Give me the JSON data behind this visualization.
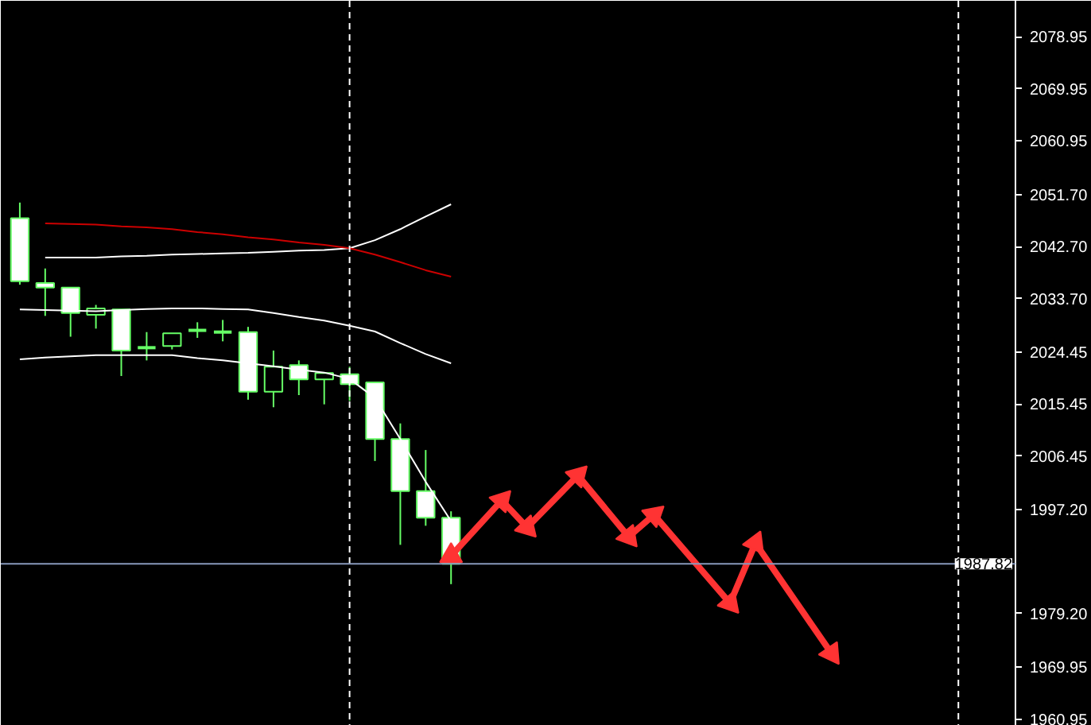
{
  "chart_data": {
    "type": "candlestick",
    "categories": [
      null,
      null,
      null,
      null,
      null,
      null,
      null,
      null,
      null,
      null,
      null,
      null,
      null,
      null,
      null,
      null,
      null,
      null,
      null,
      null,
      null,
      null,
      null,
      null,
      null,
      null,
      null,
      null,
      null,
      null,
      null,
      null,
      null,
      null,
      null,
      null,
      null,
      null,
      null,
      null
    ],
    "ylim": [
      1959.8,
      2085.2
    ],
    "yticks": [
      2078.95,
      2069.95,
      2060.95,
      {
        "value": 2051.7,
        "label": "2051.70"
      },
      {
        "value": 2042.7,
        "label": "2042.70"
      },
      {
        "value": 2033.7,
        "label": "2033.70"
      },
      2024.45,
      2015.45,
      2006.45,
      {
        "value": 1997.2,
        "label": "1997.20"
      },
      {
        "value": 1979.2,
        "label": "1979.20"
      },
      1969.95,
      1960.95
    ],
    "tick_labels": "y",
    "grid": false,
    "series": [
      {
        "color": "#66ff66",
        "ohlc": [
          [
            2047.6,
            2050.3,
            2036.1,
            2036.7
          ],
          [
            2036.4,
            2038.9,
            2030.7,
            2035.6
          ],
          [
            2035.6,
            2035.6,
            2027.1,
            2031.2
          ],
          [
            2030.9,
            2032.6,
            2028.5,
            2032.0
          ],
          [
            2031.8,
            2031.8,
            2020.3,
            2024.7
          ],
          [
            2025.2,
            2027.9,
            2023.0,
            2025.2
          ],
          [
            2025.5,
            2027.7,
            2024.9,
            2027.7
          ],
          [
            2028.2,
            2029.6,
            2026.9,
            2028.2
          ],
          [
            2027.9,
            2030.0,
            2026.3,
            2027.9
          ],
          [
            2027.9,
            2028.8,
            2016.2,
            2017.6
          ],
          [
            2017.6,
            2024.7,
            2014.9,
            2021.9
          ],
          [
            2022.2,
            2023.0,
            2017.0,
            2019.7
          ],
          [
            2019.7,
            2020.8,
            2015.4,
            2020.8
          ],
          [
            2020.6,
            2021.9,
            2016.0,
            2018.9
          ],
          [
            2019.2,
            2019.2,
            2005.6,
            2009.4
          ],
          [
            2009.4,
            2012.1,
            1991.1,
            2000.4
          ],
          [
            2000.4,
            2007.5,
            1994.4,
            1995.8
          ],
          [
            1995.8,
            1996.9,
            1984.3,
            1987.82
          ],
          null,
          null,
          null,
          null,
          null,
          null,
          null,
          null,
          null,
          null,
          null,
          null,
          null,
          null,
          null,
          null,
          null,
          null,
          null,
          null,
          null,
          null
        ]
      },
      {
        "type": "line",
        "color": "#ffffff",
        "values": [
          null,
          2040.8,
          2040.8,
          2040.8,
          2041.0,
          2041.1,
          2041.3,
          2041.4,
          2041.5,
          2041.6,
          2041.8,
          2042.0,
          2042.1,
          2042.4,
          2043.8,
          2045.7,
          2047.9,
          2050.0,
          null,
          null,
          null,
          null,
          null,
          null,
          null,
          null,
          null,
          null,
          null,
          null,
          null,
          null,
          null,
          null,
          null,
          null,
          null,
          null,
          null,
          null
        ]
      },
      {
        "type": "line",
        "color": "#ffffff",
        "values": [
          2031.8,
          2031.7,
          2031.6,
          2031.5,
          2031.7,
          2031.9,
          2032.0,
          2032.0,
          2031.9,
          2031.8,
          2031.2,
          2030.5,
          2029.9,
          2029.0,
          2028.0,
          2026.0,
          2024.1,
          2022.5,
          null,
          null,
          null,
          null,
          null,
          null,
          null,
          null,
          null,
          null,
          null,
          null,
          null,
          null,
          null,
          null,
          null,
          null,
          null,
          null,
          null,
          null
        ]
      },
      {
        "type": "line",
        "color": "#ffffff",
        "values": [
          2023.2,
          2023.5,
          2023.7,
          2023.9,
          2023.9,
          2023.9,
          2023.9,
          2023.4,
          2023.0,
          2022.5,
          2022.0,
          2021.4,
          2020.9,
          2019.8,
          2016.5,
          2009.4,
          2002.0,
          1995.2,
          null,
          null,
          null,
          null,
          null,
          null,
          null,
          null,
          null,
          null,
          null,
          null,
          null,
          null,
          null,
          null,
          null,
          null,
          null,
          null,
          null,
          null
        ]
      },
      {
        "type": "line",
        "color": "#cc0000",
        "values": [
          null,
          2046.7,
          2046.6,
          2046.5,
          2046.2,
          2046.0,
          2045.7,
          2045.2,
          2044.8,
          2044.3,
          2043.9,
          2043.4,
          2043.0,
          2042.4,
          2041.3,
          2040.0,
          2038.6,
          2037.5,
          null,
          null,
          null,
          null,
          null,
          null,
          null,
          null,
          null,
          null,
          null,
          null,
          null,
          null,
          null,
          null,
          null,
          null,
          null,
          null,
          null,
          null
        ]
      },
      {
        "type": "line",
        "color": "#ff3333",
        "marker": "triangle",
        "values": [
          null,
          null,
          null,
          null,
          null,
          null,
          null,
          null,
          null,
          null,
          null,
          null,
          null,
          null,
          null,
          null,
          null,
          1989.2,
          null,
          1998.8,
          1994.1,
          null,
          2003.1,
          null,
          1992.5,
          1996.3,
          null,
          null,
          1981.0,
          1991.4,
          null,
          null,
          1972.3,
          null,
          null,
          null,
          null,
          null,
          null,
          null
        ]
      }
    ],
    "ref_lines": [
      {
        "axis": "y",
        "value": 1987.82,
        "label": "1987.82",
        "color": "#8899bb"
      }
    ]
  }
}
